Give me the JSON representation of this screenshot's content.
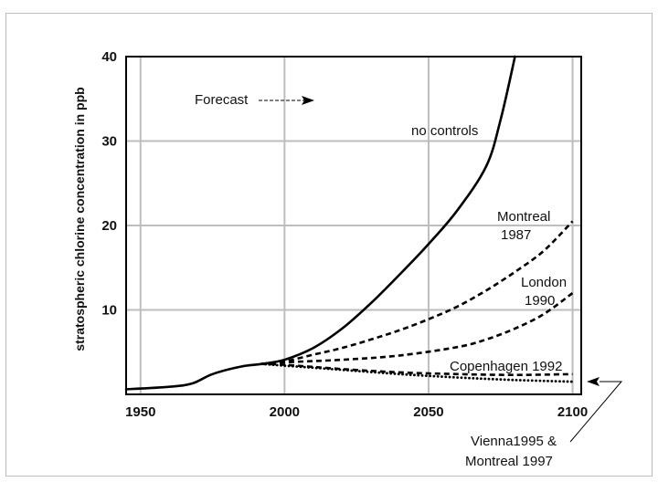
{
  "chart_data": {
    "type": "line",
    "title": "",
    "xlabel": "",
    "ylabel": "stratospheric chlorine concentration in ppb",
    "xlim": [
      1945,
      2103
    ],
    "ylim": [
      0,
      40
    ],
    "x_ticks": [
      1950,
      2000,
      2050,
      2100
    ],
    "y_ticks": [
      10,
      20,
      30,
      40
    ],
    "grid": true,
    "series": [
      {
        "name": "no controls",
        "style": "solid",
        "x": [
          1945,
          1960,
          1968,
          1975,
          1985,
          1992,
          2000,
          2010,
          2020,
          2030,
          2040,
          2050,
          2060,
          2070,
          2075,
          2080
        ],
        "y": [
          0.6,
          0.9,
          1.3,
          2.4,
          3.3,
          3.6,
          4.1,
          5.5,
          7.8,
          10.8,
          14.2,
          17.8,
          21.8,
          27.0,
          32.5,
          40.0
        ]
      },
      {
        "name": "Montreal 1987",
        "style": "dashed",
        "x": [
          1992,
          2000,
          2010,
          2020,
          2030,
          2040,
          2050,
          2060,
          2070,
          2080,
          2090,
          2100
        ],
        "y": [
          3.6,
          3.9,
          4.7,
          5.5,
          6.5,
          7.6,
          8.9,
          10.4,
          12.3,
          14.5,
          17.0,
          20.5
        ]
      },
      {
        "name": "London 1990",
        "style": "dashed",
        "x": [
          1992,
          2000,
          2020,
          2040,
          2060,
          2070,
          2080,
          2090,
          2100
        ],
        "y": [
          3.6,
          3.8,
          4.1,
          4.6,
          5.6,
          6.5,
          7.8,
          9.5,
          12.0
        ]
      },
      {
        "name": "Copenhagen 1992",
        "style": "dashed",
        "x": [
          1992,
          2000,
          2020,
          2040,
          2060,
          2080,
          2100
        ],
        "y": [
          3.6,
          3.5,
          3.0,
          2.6,
          2.4,
          2.3,
          2.4
        ]
      },
      {
        "name": "Vienna1995 & Montreal 1997",
        "style": "dotted",
        "x": [
          1992,
          2000,
          2020,
          2040,
          2060,
          2080,
          2100
        ],
        "y": [
          3.6,
          3.4,
          2.9,
          2.4,
          2.0,
          1.7,
          1.5
        ]
      }
    ],
    "annotations": {
      "forecast": "Forecast",
      "no_controls": "no controls",
      "montreal": "Montreal",
      "montreal_year": "1987",
      "london": "London",
      "london_year": "1990",
      "copenhagen": "Copenhagen 1992",
      "vienna_line1": "Vienna1995 &",
      "vienna_line2": "Montreal 1997"
    },
    "colors": {
      "line": "#000000",
      "grid": "#bdbdbd",
      "frame": "#000000"
    }
  }
}
